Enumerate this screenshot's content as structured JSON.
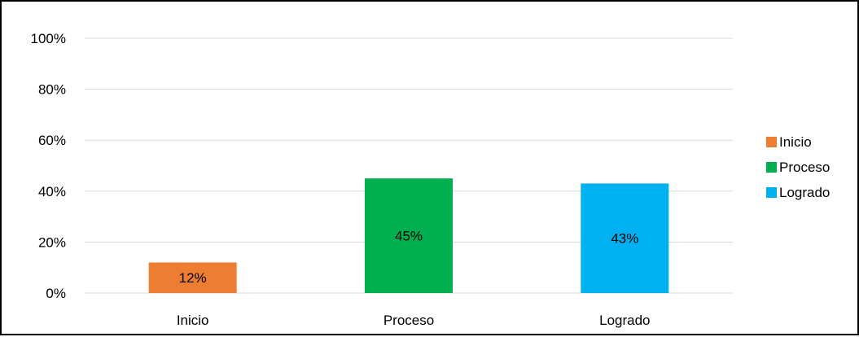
{
  "chart_data": {
    "type": "bar",
    "categories": [
      "Inicio",
      "Proceso",
      "Logrado"
    ],
    "values": [
      12,
      45,
      43
    ],
    "data_labels": [
      "12%",
      "45%",
      "43%"
    ],
    "colors": [
      "#ED7D31",
      "#00B050",
      "#00B0F0"
    ],
    "ylim": [
      0,
      100
    ],
    "y_ticks": [
      0,
      20,
      40,
      60,
      80,
      100
    ],
    "y_tick_labels": [
      "0%",
      "20%",
      "40%",
      "60%",
      "80%",
      "100%"
    ],
    "grid": true,
    "legend": {
      "position": "right",
      "entries": [
        "Inicio",
        "Proceso",
        "Logrado"
      ]
    },
    "title": "",
    "xlabel": "",
    "ylabel": ""
  }
}
